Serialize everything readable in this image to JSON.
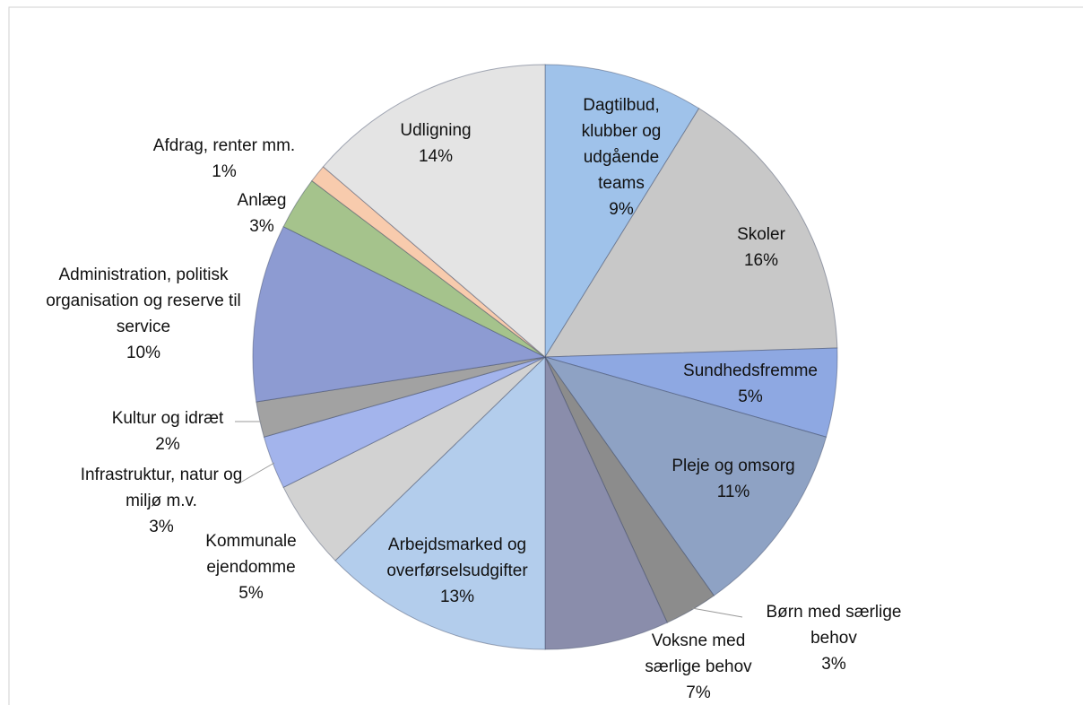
{
  "chart_data": {
    "type": "pie",
    "categories": [
      "Dagtilbud, klubber og udgående teams",
      "Skoler",
      "Sundhedsfremme",
      "Pleje og omsorg",
      "Børn med særlige behov",
      "Voksne med særlige behov",
      "Arbejdsmarked og overførselsudgifter",
      "Kommunale ejendomme",
      "Infrastruktur, natur og miljø m.v.",
      "Kultur og idræt",
      "Administration, politisk organisation og reserve til service",
      "Anlæg",
      "Afdrag, renter mm.",
      "Udligning"
    ],
    "values": [
      9,
      16,
      5,
      11,
      3,
      7,
      13,
      5,
      3,
      2,
      10,
      3,
      1,
      14
    ],
    "value_labels": [
      "9%",
      "16%",
      "5%",
      "11%",
      "3%",
      "7%",
      "13%",
      "5%",
      "3%",
      "2%",
      "10%",
      "3%",
      "1%",
      "14%"
    ],
    "colors": [
      "#9fc2ea",
      "#c8c8c8",
      "#8ea8e2",
      "#8ea2c4",
      "#8c8c8c",
      "#8a8dab",
      "#b3cdec",
      "#d2d2d2",
      "#a3b4ec",
      "#a2a2a2",
      "#8d9bd2",
      "#a5c38c",
      "#f8cbad",
      "#e4e4e4"
    ]
  }
}
